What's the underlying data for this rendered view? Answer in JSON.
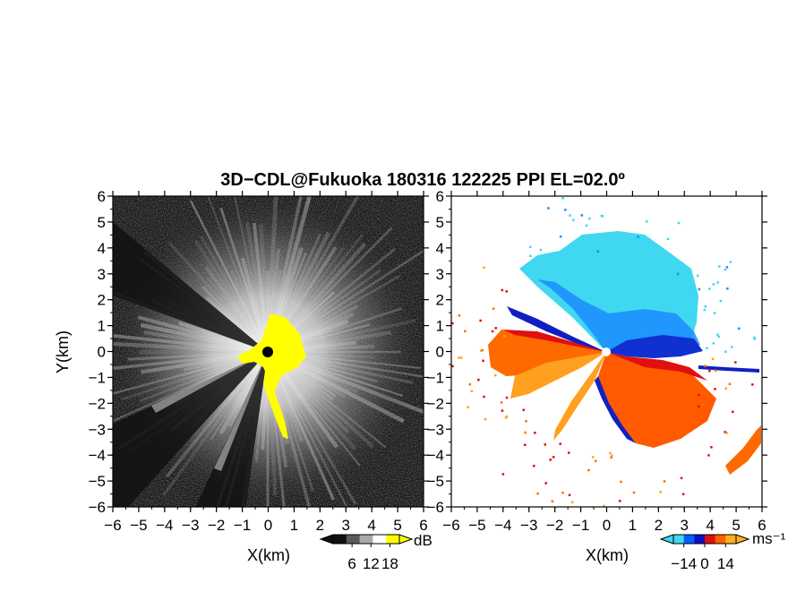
{
  "chart_data": {
    "title": "3D−CDL@Fukuoka 180316 122225 PPI EL=02.0º",
    "type": "heatmap",
    "panels": [
      {
        "name": "reflectivity",
        "xlabel": "X(km)",
        "ylabel": "Y(km)",
        "xlim": [
          -6,
          6
        ],
        "ylim": [
          -6,
          6
        ],
        "xticks": [
          "−6",
          "−5",
          "−4",
          "−3",
          "−2",
          "−1",
          "0",
          "1",
          "2",
          "3",
          "4",
          "5",
          "6"
        ],
        "yticks": [
          "6",
          "5",
          "4",
          "3",
          "2",
          "1",
          "0",
          "−1",
          "−2",
          "−3",
          "−4",
          "−5",
          "−6"
        ],
        "colorbar": {
          "unit": "dB",
          "tick_labels": [
            "6",
            "12",
            "18"
          ],
          "ticks": [
            6,
            12,
            18
          ],
          "range": [
            0,
            21
          ],
          "colors": [
            "#101010",
            "#5a5a5a",
            "#a9a9a9",
            "#ffffff",
            "#ffff00"
          ]
        }
      },
      {
        "name": "doppler-velocity",
        "xlabel": "X(km)",
        "ylabel": "",
        "xlim": [
          -6,
          6
        ],
        "ylim": [
          -6,
          6
        ],
        "xticks": [
          "−6",
          "−5",
          "−4",
          "−3",
          "−2",
          "−1",
          "0",
          "1",
          "2",
          "3",
          "4",
          "5",
          "6"
        ],
        "yticks": [
          "6",
          "5",
          "4",
          "3",
          "2",
          "1",
          "0",
          "−1",
          "−2",
          "−3",
          "−4",
          "−5",
          "−6"
        ],
        "colorbar": {
          "unit": "ms⁻¹",
          "tick_labels": [
            "−14",
            "0",
            "14"
          ],
          "ticks": [
            -14,
            0,
            14
          ],
          "range": [
            -21,
            21
          ],
          "colors": [
            "#40d8f0",
            "#0060ff",
            "#1010c0",
            "#e01010",
            "#ff6000",
            "#ffb020"
          ]
        }
      }
    ]
  }
}
